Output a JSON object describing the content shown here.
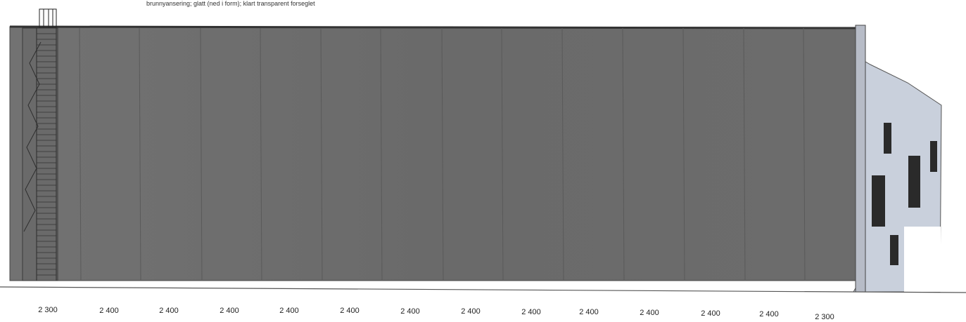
{
  "annotation": {
    "material_note": "brunnyansering; glatt (ned i form); klart transparent forseglet"
  },
  "dimensions": {
    "labels": [
      "2 300",
      "2 400",
      "2 400",
      "2 400",
      "2 400",
      "2 400",
      "2 400",
      "2 400",
      "2 400",
      "2 400",
      "2 400",
      "2 400",
      "2 400",
      "2 300"
    ]
  },
  "colors": {
    "facade": "#6d6d6d",
    "facade_light": "#7a7a7a",
    "annex": "#c9d0dc",
    "window": "#2a2a2a",
    "ground": "#555555"
  }
}
